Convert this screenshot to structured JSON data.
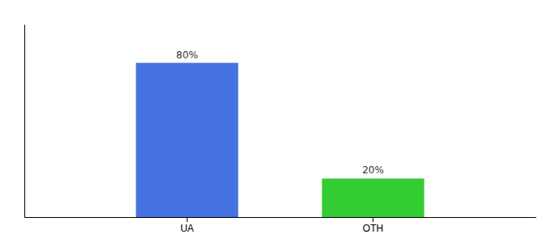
{
  "chart_data": {
    "type": "bar",
    "categories": [
      "UA",
      "OTH"
    ],
    "values": [
      80,
      20
    ],
    "value_labels": [
      "80%",
      "20%"
    ],
    "data_labels": true,
    "colors": [
      "#4472e0",
      "#33cc33"
    ],
    "ylim": [
      0,
      100
    ],
    "grid": false,
    "tick_labels": "x"
  }
}
